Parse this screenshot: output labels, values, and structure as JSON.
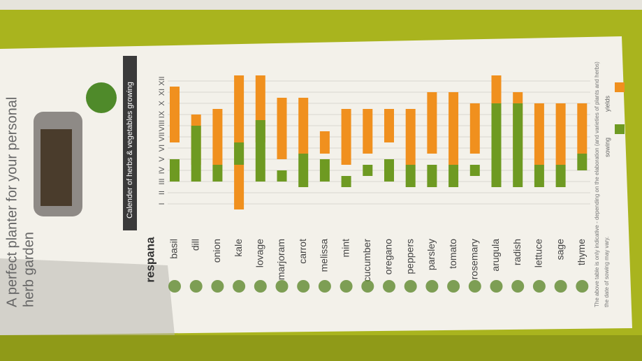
{
  "chart_data": {
    "type": "range-bar",
    "title": "Calender of herbs & vegetables growing",
    "brand": "respana",
    "heading": [
      "A perfect planter for your personal",
      "herb garden"
    ],
    "footnote": [
      "The above table is only indicative - depending on the elaboration (and varieties of plants and herbs)",
      "the date of sowing may vary."
    ],
    "categories": [
      "basil",
      "dill",
      "onion",
      "kale",
      "lovage",
      "marjoram",
      "carrot",
      "melissa",
      "mint",
      "cucumber",
      "oregano",
      "peppers",
      "parsley",
      "tomato",
      "rosemary",
      "arugula",
      "radish",
      "lettuce",
      "sage",
      "thyme"
    ],
    "series": [
      {
        "name": "yields",
        "color": "#f0901e",
        "values": [
          [
            6,
            11
          ],
          [
            4,
            8.5
          ],
          [
            4,
            9
          ],
          [
            0,
            12
          ],
          [
            6,
            12
          ],
          [
            4.5,
            10
          ],
          [
            5,
            10
          ],
          [
            5,
            7
          ],
          [
            4,
            9
          ],
          [
            5,
            9
          ],
          [
            6,
            9
          ],
          [
            4,
            9
          ],
          [
            5,
            10.5
          ],
          [
            4,
            10.5
          ],
          [
            5,
            9.5
          ],
          [
            4,
            12
          ],
          [
            4.5,
            10.5
          ],
          [
            4,
            9.5
          ],
          [
            4,
            9.5
          ],
          [
            5,
            9.5
          ]
        ]
      },
      {
        "name": "sowing",
        "color": "#6e9a22",
        "values": [
          [
            2.5,
            4.5
          ],
          [
            2.5,
            7.5
          ],
          [
            2.5,
            4
          ],
          [
            4,
            6
          ],
          [
            2.5,
            8
          ],
          [
            2.5,
            3.5
          ],
          [
            2,
            5
          ],
          [
            2.5,
            4.5
          ],
          [
            2,
            3
          ],
          [
            3,
            4
          ],
          [
            2.5,
            4.5
          ],
          [
            2,
            4
          ],
          [
            2,
            4
          ],
          [
            2,
            4
          ],
          [
            3,
            4
          ],
          [
            2,
            9.5
          ],
          [
            2,
            9.5
          ],
          [
            2,
            4
          ],
          [
            2,
            4
          ],
          [
            3.5,
            5
          ]
        ]
      }
    ],
    "ylim": [
      0,
      12
    ],
    "yticks": [
      {
        "value": 0.5,
        "label": "I"
      },
      {
        "value": 1.5,
        "label": "II"
      },
      {
        "value": 2.5,
        "label": "III"
      },
      {
        "value": 3.5,
        "label": "IV"
      },
      {
        "value": 4.5,
        "label": "V"
      },
      {
        "value": 5.5,
        "label": "VI"
      },
      {
        "value": 6.5,
        "label": "VII"
      },
      {
        "value": 7.5,
        "label": "VIII"
      },
      {
        "value": 8.5,
        "label": "IX"
      },
      {
        "value": 9.5,
        "label": "X"
      },
      {
        "value": 10.5,
        "label": "XI"
      },
      {
        "value": 11.5,
        "label": "XII"
      }
    ],
    "grid": true
  }
}
